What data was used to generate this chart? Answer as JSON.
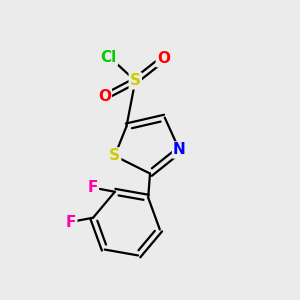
{
  "bg_color": "#ebebeb",
  "bond_color": "#000000",
  "bond_width": 1.6,
  "atom_colors": {
    "S": "#cccc00",
    "N": "#0000ff",
    "O": "#ff0000",
    "Cl": "#00cc00",
    "F1": "#ff00aa",
    "F2": "#ff00aa"
  },
  "font_size": 10
}
